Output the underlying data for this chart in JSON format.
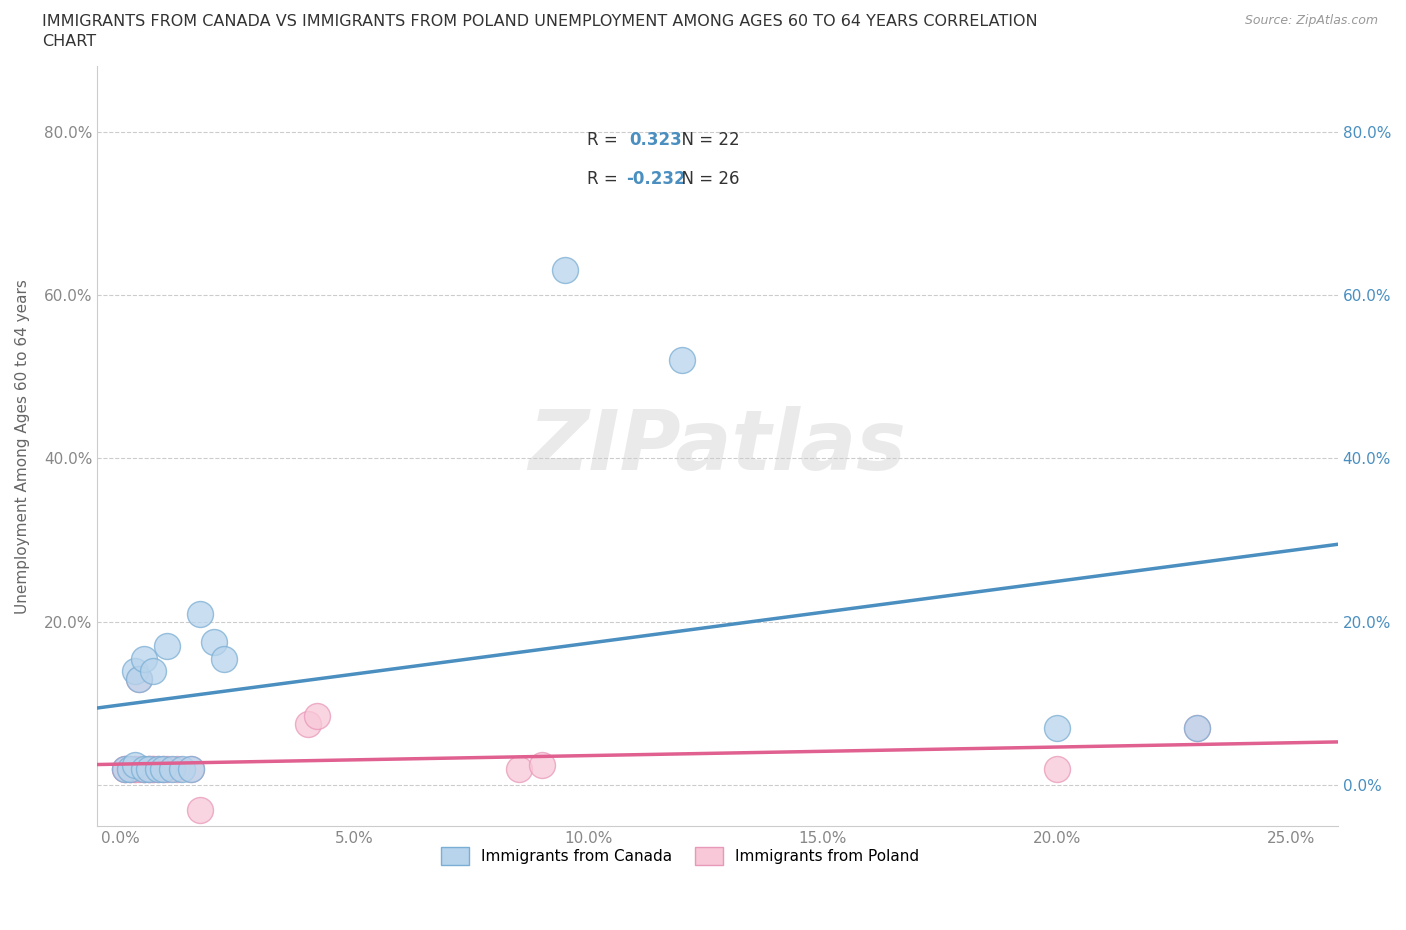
{
  "title_line1": "IMMIGRANTS FROM CANADA VS IMMIGRANTS FROM POLAND UNEMPLOYMENT AMONG AGES 60 TO 64 YEARS CORRELATION",
  "title_line2": "CHART",
  "source": "Source: ZipAtlas.com",
  "ylabel": "Unemployment Among Ages 60 to 64 years",
  "canada_x": [
    0.001,
    0.002,
    0.003,
    0.003,
    0.004,
    0.005,
    0.005,
    0.006,
    0.007,
    0.008,
    0.009,
    0.01,
    0.011,
    0.013,
    0.015,
    0.017,
    0.02,
    0.022,
    0.095,
    0.12,
    0.2,
    0.23
  ],
  "canada_y": [
    0.02,
    0.02,
    0.025,
    0.14,
    0.13,
    0.155,
    0.02,
    0.02,
    0.14,
    0.02,
    0.02,
    0.17,
    0.02,
    0.02,
    0.02,
    0.21,
    0.175,
    0.155,
    0.63,
    0.52,
    0.07,
    0.07
  ],
  "poland_x": [
    0.001,
    0.001,
    0.002,
    0.002,
    0.003,
    0.003,
    0.004,
    0.004,
    0.005,
    0.005,
    0.006,
    0.006,
    0.007,
    0.007,
    0.008,
    0.009,
    0.01,
    0.012,
    0.015,
    0.017,
    0.04,
    0.042,
    0.085,
    0.09,
    0.2,
    0.23
  ],
  "poland_y": [
    0.02,
    0.02,
    0.02,
    0.02,
    0.02,
    0.02,
    0.02,
    0.13,
    0.02,
    0.02,
    0.02,
    0.02,
    0.02,
    0.02,
    0.02,
    0.02,
    0.02,
    0.02,
    0.02,
    -0.03,
    0.075,
    0.085,
    0.02,
    0.025,
    0.02,
    0.07
  ],
  "canada_R": 0.323,
  "canada_N": 22,
  "poland_R": -0.232,
  "poland_N": 26,
  "canada_dot_color": "#b8d4ec",
  "canada_edge_color": "#7aaed4",
  "canada_line_color": "#4a8fc0",
  "poland_dot_color": "#f8c8d8",
  "poland_edge_color": "#e898b8",
  "poland_line_color": "#e06090",
  "xlim": [
    -0.005,
    0.26
  ],
  "ylim": [
    -0.05,
    0.88
  ],
  "xticks": [
    0.0,
    0.05,
    0.1,
    0.15,
    0.2,
    0.25
  ],
  "xtick_labels": [
    "0.0%",
    "5.0%",
    "10.0%",
    "15.0%",
    "20.0%",
    "25.0%"
  ],
  "yticks": [
    0.0,
    0.2,
    0.4,
    0.6,
    0.8
  ],
  "ytick_labels_left": [
    "",
    "20.0%",
    "40.0%",
    "60.0%",
    "80.0%"
  ],
  "ytick_labels_right": [
    "0.0%",
    "20.0%",
    "40.0%",
    "60.0%",
    "80.0%"
  ],
  "watermark": "ZIPatlas",
  "background_color": "#ffffff",
  "grid_color": "#cccccc",
  "legend_label_canada": "Immigrants from Canada",
  "legend_label_poland": "Immigrants from Poland"
}
